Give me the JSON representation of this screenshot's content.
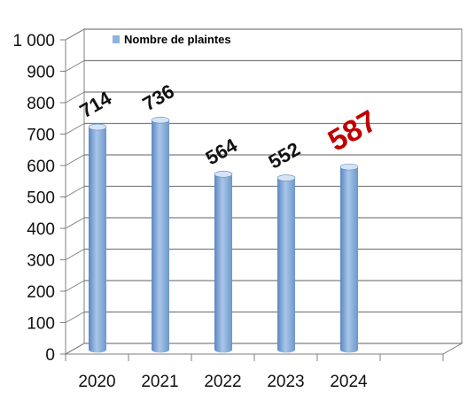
{
  "chart_data": {
    "type": "bar",
    "categories": [
      "2020",
      "2021",
      "2022",
      "2023",
      "2024"
    ],
    "series": [
      {
        "name": "Nombre de plaintes",
        "values": [
          714,
          736,
          564,
          552,
          587
        ]
      }
    ],
    "data_labels": [
      "714",
      "736",
      "564",
      "552",
      "587"
    ],
    "highlight_index": 4,
    "y_tick_labels": [
      "0",
      "100",
      "200",
      "300",
      "400",
      "500",
      "600",
      "700",
      "800",
      "900",
      "1 000"
    ],
    "ylim": [
      0,
      1000
    ],
    "ystep": 100,
    "grid": true,
    "legend_position": "top-left",
    "colors": {
      "bar": "#8fb4dd",
      "bar_dark": "#5b87c2",
      "bar_light": "#d5e4f5",
      "highlight_label": "#c00000",
      "gridline": "#7f7f7f"
    }
  }
}
